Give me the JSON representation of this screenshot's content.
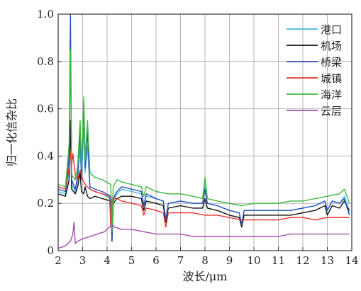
{
  "chart_data": {
    "type": "line",
    "title": "",
    "xlabel": "波长/μm",
    "ylabel": "归一化信杂比",
    "xlim": [
      2,
      14
    ],
    "ylim": [
      0,
      1.0
    ],
    "xticks": [
      "2",
      "3",
      "4",
      "5",
      "6",
      "7",
      "8",
      "9",
      "10",
      "11",
      "12",
      "13",
      "14"
    ],
    "yticks": [
      "0",
      "0.2",
      "0.4",
      "0.6",
      "0.8",
      "1.0"
    ],
    "grid": true,
    "legend_position": "top-right",
    "series": [
      {
        "name": "港口",
        "color": "#3fb8e0",
        "points": [
          [
            2.0,
            0.25
          ],
          [
            2.3,
            0.24
          ],
          [
            2.45,
            0.34
          ],
          [
            2.5,
            0.95
          ],
          [
            2.55,
            0.28
          ],
          [
            2.7,
            0.25
          ],
          [
            2.8,
            0.3
          ],
          [
            2.9,
            0.44
          ],
          [
            2.95,
            0.3
          ],
          [
            3.05,
            0.52
          ],
          [
            3.1,
            0.33
          ],
          [
            3.2,
            0.44
          ],
          [
            3.3,
            0.26
          ],
          [
            3.5,
            0.25
          ],
          [
            3.8,
            0.24
          ],
          [
            4.15,
            0.22
          ],
          [
            4.2,
            0.05
          ],
          [
            4.25,
            0.21
          ],
          [
            4.4,
            0.24
          ],
          [
            4.6,
            0.26
          ],
          [
            5.0,
            0.25
          ],
          [
            5.4,
            0.24
          ],
          [
            5.5,
            0.19
          ],
          [
            5.6,
            0.23
          ],
          [
            6.0,
            0.22
          ],
          [
            6.3,
            0.21
          ],
          [
            6.4,
            0.13
          ],
          [
            6.5,
            0.2
          ],
          [
            7.0,
            0.21
          ],
          [
            7.5,
            0.2
          ],
          [
            7.9,
            0.2
          ],
          [
            8.0,
            0.27
          ],
          [
            8.1,
            0.2
          ],
          [
            8.5,
            0.19
          ],
          [
            9.0,
            0.17
          ],
          [
            9.4,
            0.16
          ],
          [
            9.5,
            0.11
          ],
          [
            9.6,
            0.17
          ],
          [
            10.0,
            0.17
          ],
          [
            10.5,
            0.17
          ],
          [
            11.0,
            0.17
          ],
          [
            11.5,
            0.17
          ],
          [
            12.0,
            0.18
          ],
          [
            12.5,
            0.19
          ],
          [
            12.9,
            0.21
          ],
          [
            13.0,
            0.17
          ],
          [
            13.2,
            0.21
          ],
          [
            13.5,
            0.2
          ],
          [
            13.7,
            0.23
          ],
          [
            13.9,
            0.16
          ]
        ]
      },
      {
        "name": "机场",
        "color": "#111111",
        "points": [
          [
            2.0,
            0.24
          ],
          [
            2.3,
            0.23
          ],
          [
            2.45,
            0.3
          ],
          [
            2.5,
            0.55
          ],
          [
            2.55,
            0.26
          ],
          [
            2.7,
            0.24
          ],
          [
            2.8,
            0.27
          ],
          [
            2.9,
            0.33
          ],
          [
            2.95,
            0.25
          ],
          [
            3.05,
            0.24
          ],
          [
            3.1,
            0.27
          ],
          [
            3.2,
            0.23
          ],
          [
            3.3,
            0.22
          ],
          [
            3.5,
            0.23
          ],
          [
            3.8,
            0.22
          ],
          [
            4.15,
            0.21
          ],
          [
            4.2,
            0.04
          ],
          [
            4.25,
            0.2
          ],
          [
            4.4,
            0.22
          ],
          [
            4.6,
            0.23
          ],
          [
            5.0,
            0.23
          ],
          [
            5.4,
            0.22
          ],
          [
            5.5,
            0.17
          ],
          [
            5.6,
            0.21
          ],
          [
            6.0,
            0.2
          ],
          [
            6.3,
            0.19
          ],
          [
            6.4,
            0.12
          ],
          [
            6.5,
            0.18
          ],
          [
            7.0,
            0.19
          ],
          [
            7.5,
            0.18
          ],
          [
            7.9,
            0.18
          ],
          [
            8.0,
            0.22
          ],
          [
            8.1,
            0.18
          ],
          [
            8.5,
            0.17
          ],
          [
            9.0,
            0.15
          ],
          [
            9.4,
            0.14
          ],
          [
            9.5,
            0.1
          ],
          [
            9.6,
            0.15
          ],
          [
            10.0,
            0.15
          ],
          [
            10.5,
            0.15
          ],
          [
            11.0,
            0.15
          ],
          [
            11.5,
            0.15
          ],
          [
            12.0,
            0.16
          ],
          [
            12.5,
            0.17
          ],
          [
            12.9,
            0.19
          ],
          [
            13.0,
            0.15
          ],
          [
            13.2,
            0.19
          ],
          [
            13.5,
            0.18
          ],
          [
            13.7,
            0.21
          ],
          [
            13.9,
            0.17
          ]
        ]
      },
      {
        "name": "桥梁",
        "color": "#2b4fc2",
        "points": [
          [
            2.0,
            0.26
          ],
          [
            2.3,
            0.25
          ],
          [
            2.45,
            0.4
          ],
          [
            2.5,
            1.0
          ],
          [
            2.55,
            0.3
          ],
          [
            2.7,
            0.26
          ],
          [
            2.8,
            0.32
          ],
          [
            2.9,
            0.5
          ],
          [
            2.95,
            0.32
          ],
          [
            3.05,
            0.62
          ],
          [
            3.1,
            0.35
          ],
          [
            3.2,
            0.5
          ],
          [
            3.3,
            0.27
          ],
          [
            3.5,
            0.26
          ],
          [
            3.8,
            0.25
          ],
          [
            4.15,
            0.23
          ],
          [
            4.2,
            0.05
          ],
          [
            4.25,
            0.22
          ],
          [
            4.4,
            0.25
          ],
          [
            4.6,
            0.27
          ],
          [
            5.0,
            0.26
          ],
          [
            5.4,
            0.25
          ],
          [
            5.5,
            0.19
          ],
          [
            5.6,
            0.24
          ],
          [
            6.0,
            0.22
          ],
          [
            6.3,
            0.21
          ],
          [
            6.4,
            0.13
          ],
          [
            6.5,
            0.2
          ],
          [
            7.0,
            0.21
          ],
          [
            7.5,
            0.2
          ],
          [
            7.9,
            0.2
          ],
          [
            8.0,
            0.26
          ],
          [
            8.1,
            0.2
          ],
          [
            8.5,
            0.19
          ],
          [
            9.0,
            0.17
          ],
          [
            9.4,
            0.16
          ],
          [
            9.5,
            0.11
          ],
          [
            9.6,
            0.17
          ],
          [
            10.0,
            0.17
          ],
          [
            10.5,
            0.17
          ],
          [
            11.0,
            0.17
          ],
          [
            11.5,
            0.17
          ],
          [
            12.0,
            0.18
          ],
          [
            12.5,
            0.19
          ],
          [
            12.9,
            0.21
          ],
          [
            13.0,
            0.17
          ],
          [
            13.2,
            0.21
          ],
          [
            13.5,
            0.2
          ],
          [
            13.7,
            0.22
          ],
          [
            13.9,
            0.15
          ]
        ]
      },
      {
        "name": "城镇",
        "color": "#e8322a",
        "points": [
          [
            2.0,
            0.27
          ],
          [
            2.3,
            0.26
          ],
          [
            2.45,
            0.35
          ],
          [
            2.5,
            0.42
          ],
          [
            2.55,
            0.36
          ],
          [
            2.6,
            0.41
          ],
          [
            2.7,
            0.32
          ],
          [
            2.8,
            0.3
          ],
          [
            2.9,
            0.34
          ],
          [
            3.0,
            0.3
          ],
          [
            3.1,
            0.28
          ],
          [
            3.3,
            0.26
          ],
          [
            3.5,
            0.25
          ],
          [
            3.8,
            0.24
          ],
          [
            4.1,
            0.23
          ],
          [
            4.15,
            0.1
          ],
          [
            4.2,
            0.22
          ],
          [
            4.4,
            0.22
          ],
          [
            4.6,
            0.21
          ],
          [
            5.0,
            0.2
          ],
          [
            5.4,
            0.19
          ],
          [
            5.5,
            0.15
          ],
          [
            5.6,
            0.18
          ],
          [
            6.0,
            0.17
          ],
          [
            6.3,
            0.16
          ],
          [
            6.4,
            0.1
          ],
          [
            6.5,
            0.16
          ],
          [
            7.0,
            0.16
          ],
          [
            7.5,
            0.16
          ],
          [
            8.0,
            0.15
          ],
          [
            8.5,
            0.15
          ],
          [
            9.0,
            0.14
          ],
          [
            9.5,
            0.13
          ],
          [
            10.0,
            0.13
          ],
          [
            10.5,
            0.13
          ],
          [
            11.0,
            0.13
          ],
          [
            11.5,
            0.14
          ],
          [
            12.0,
            0.14
          ],
          [
            12.5,
            0.13
          ],
          [
            13.0,
            0.14
          ],
          [
            13.5,
            0.14
          ],
          [
            13.9,
            0.14
          ]
        ]
      },
      {
        "name": "海洋",
        "color": "#3cb83c",
        "points": [
          [
            2.0,
            0.28
          ],
          [
            2.3,
            0.27
          ],
          [
            2.45,
            0.45
          ],
          [
            2.5,
            0.85
          ],
          [
            2.55,
            0.32
          ],
          [
            2.7,
            0.3
          ],
          [
            2.8,
            0.36
          ],
          [
            2.9,
            0.55
          ],
          [
            2.95,
            0.35
          ],
          [
            3.05,
            0.65
          ],
          [
            3.1,
            0.38
          ],
          [
            3.2,
            0.55
          ],
          [
            3.3,
            0.33
          ],
          [
            3.5,
            0.31
          ],
          [
            3.8,
            0.3
          ],
          [
            4.15,
            0.28
          ],
          [
            4.2,
            0.08
          ],
          [
            4.25,
            0.27
          ],
          [
            4.4,
            0.3
          ],
          [
            4.6,
            0.29
          ],
          [
            5.0,
            0.28
          ],
          [
            5.4,
            0.27
          ],
          [
            5.5,
            0.23
          ],
          [
            5.6,
            0.27
          ],
          [
            6.0,
            0.25
          ],
          [
            6.5,
            0.24
          ],
          [
            7.0,
            0.24
          ],
          [
            7.5,
            0.23
          ],
          [
            7.9,
            0.22
          ],
          [
            8.0,
            0.31
          ],
          [
            8.1,
            0.22
          ],
          [
            8.5,
            0.21
          ],
          [
            9.0,
            0.2
          ],
          [
            9.5,
            0.19
          ],
          [
            10.0,
            0.2
          ],
          [
            10.5,
            0.2
          ],
          [
            11.0,
            0.2
          ],
          [
            11.5,
            0.21
          ],
          [
            12.0,
            0.21
          ],
          [
            12.5,
            0.22
          ],
          [
            13.0,
            0.23
          ],
          [
            13.5,
            0.24
          ],
          [
            13.7,
            0.26
          ],
          [
            13.9,
            0.2
          ]
        ]
      },
      {
        "name": "云层",
        "color": "#a64bb0",
        "points": [
          [
            2.0,
            0.01
          ],
          [
            2.3,
            0.02
          ],
          [
            2.5,
            0.04
          ],
          [
            2.6,
            0.07
          ],
          [
            2.65,
            0.12
          ],
          [
            2.7,
            0.03
          ],
          [
            2.8,
            0.04
          ],
          [
            3.0,
            0.05
          ],
          [
            3.3,
            0.06
          ],
          [
            3.6,
            0.07
          ],
          [
            3.9,
            0.08
          ],
          [
            4.1,
            0.1
          ],
          [
            4.2,
            0.11
          ],
          [
            4.3,
            0.1
          ],
          [
            4.6,
            0.09
          ],
          [
            5.0,
            0.09
          ],
          [
            5.5,
            0.08
          ],
          [
            6.0,
            0.07
          ],
          [
            6.5,
            0.07
          ],
          [
            7.0,
            0.07
          ],
          [
            7.5,
            0.06
          ],
          [
            8.0,
            0.06
          ],
          [
            8.5,
            0.06
          ],
          [
            9.0,
            0.06
          ],
          [
            9.5,
            0.06
          ],
          [
            10.0,
            0.06
          ],
          [
            10.5,
            0.06
          ],
          [
            11.0,
            0.06
          ],
          [
            11.5,
            0.07
          ],
          [
            12.0,
            0.07
          ],
          [
            12.5,
            0.07
          ],
          [
            13.0,
            0.07
          ],
          [
            13.5,
            0.07
          ],
          [
            13.9,
            0.07
          ]
        ]
      }
    ]
  }
}
